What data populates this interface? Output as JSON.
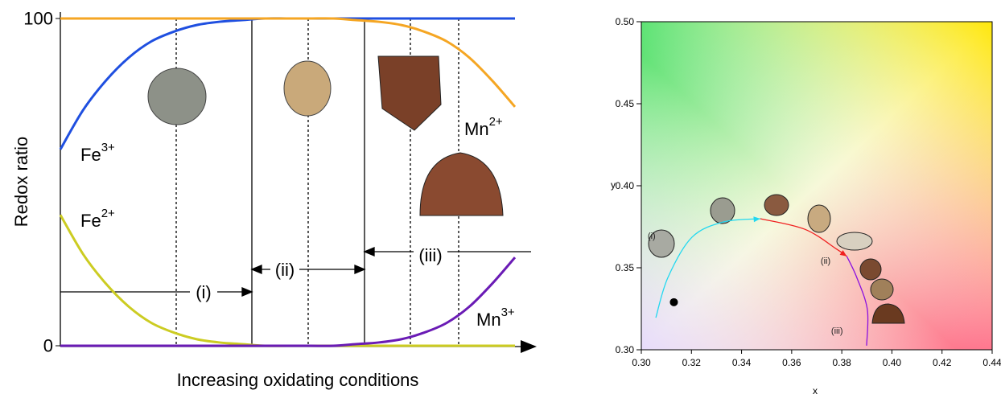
{
  "chart_data": [
    {
      "type": "line",
      "ylabel": "Redox ratio",
      "xlabel": "Increasing oxidating conditions",
      "x": [
        0,
        0.5,
        1,
        1.5,
        2,
        2.5,
        3,
        3.5,
        4,
        4.5,
        5,
        5.5,
        6,
        6.5,
        7,
        7.5,
        8,
        8.5,
        9,
        9.5,
        10
      ],
      "xlim": [
        0,
        10
      ],
      "ylim": [
        0,
        100
      ],
      "yticks": [
        0,
        100
      ],
      "series": [
        {
          "name": "Fe",
          "charge": "3+",
          "color": "#1f4fe0",
          "values": [
            60,
            72,
            81,
            88,
            93,
            96,
            98,
            99,
            99.5,
            100,
            100,
            100,
            100,
            100,
            100,
            100,
            100,
            100,
            100,
            100,
            100
          ]
        },
        {
          "name": "Fe",
          "charge": "2+",
          "color": "#cccc22",
          "values": [
            40,
            28,
            19,
            12,
            7,
            4,
            2,
            1,
            0.5,
            0,
            0,
            0,
            0,
            0,
            0,
            0,
            0,
            0,
            0,
            0,
            0
          ]
        },
        {
          "name": "Mn",
          "charge": "2+",
          "color": "#f5a623",
          "values": [
            100,
            100,
            100,
            100,
            100,
            100,
            100,
            100,
            100,
            100,
            100,
            100,
            100,
            99.5,
            99,
            98,
            96,
            93,
            88,
            81,
            73
          ]
        },
        {
          "name": "Mn",
          "charge": "3+",
          "color": "#6a1bb5",
          "values": [
            0,
            0,
            0,
            0,
            0,
            0,
            0,
            0,
            0,
            0,
            0,
            0,
            0,
            0.5,
            1,
            2,
            4,
            7,
            12,
            19,
            27
          ]
        }
      ],
      "annotations": [
        "(i)",
        "(ii)",
        "(iii)"
      ]
    },
    {
      "type": "line",
      "xlabel": "x",
      "ylabel": "y",
      "xlim": [
        0.3,
        0.44
      ],
      "ylim": [
        0.3,
        0.5
      ],
      "xticks": [
        {
          "value": 0.3,
          "label": "0.30"
        },
        {
          "value": 0.32,
          "label": "0.32"
        },
        {
          "value": 0.34,
          "label": "0.34"
        },
        {
          "value": 0.36,
          "label": "0.36"
        },
        {
          "value": 0.38,
          "label": "0.38"
        },
        {
          "value": 0.4,
          "label": "0.40"
        },
        {
          "value": 0.42,
          "label": "0.42"
        },
        {
          "value": 0.44,
          "label": "0.44"
        }
      ],
      "yticks": [
        {
          "value": 0.3,
          "label": "0.30"
        },
        {
          "value": 0.35,
          "label": "0.35"
        },
        {
          "value": 0.4,
          "label": "0.40"
        },
        {
          "value": 0.45,
          "label": "0.45"
        },
        {
          "value": 0.5,
          "label": "0.50"
        }
      ],
      "series": [
        {
          "name": "(i)",
          "color": "#22d8f0",
          "x": [
            0.3058,
            0.3106,
            0.3202,
            0.333,
            0.3475
          ],
          "values": [
            0.3196,
            0.344,
            0.3686,
            0.378,
            0.3799
          ]
        },
        {
          "name": "(ii)",
          "color": "#f02020",
          "x": [
            0.3475,
            0.3652,
            0.378,
            0.382
          ],
          "values": [
            0.3799,
            0.3735,
            0.3613,
            0.357
          ]
        },
        {
          "name": "(iii)",
          "color": "#8a10e0",
          "x": [
            0.382,
            0.386,
            0.3902,
            0.3899
          ],
          "values": [
            0.357,
            0.344,
            0.3245,
            0.3025
          ]
        }
      ],
      "marker": {
        "x": 0.313,
        "y": 0.329
      }
    }
  ]
}
